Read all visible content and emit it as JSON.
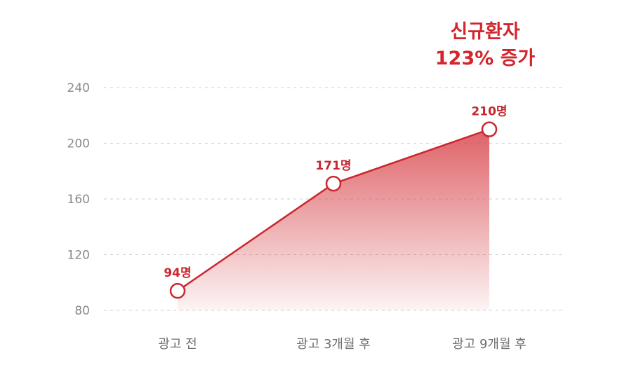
{
  "chart_data": {
    "type": "area",
    "categories": [
      "광고 전",
      "광고 3개월 후",
      "광고 9개월 후"
    ],
    "values": [
      94,
      171,
      210
    ],
    "data_labels": [
      "94명",
      "171명",
      "210명"
    ],
    "yticks": [
      80,
      120,
      160,
      200,
      240
    ],
    "ylim": [
      80,
      240
    ],
    "grid": true,
    "annotation": {
      "line1": "신규환자",
      "line2": "123% 증가"
    },
    "colors": {
      "accent": "#d3252c",
      "fill": "#d8464c",
      "grid": "#cfcfcf"
    }
  }
}
